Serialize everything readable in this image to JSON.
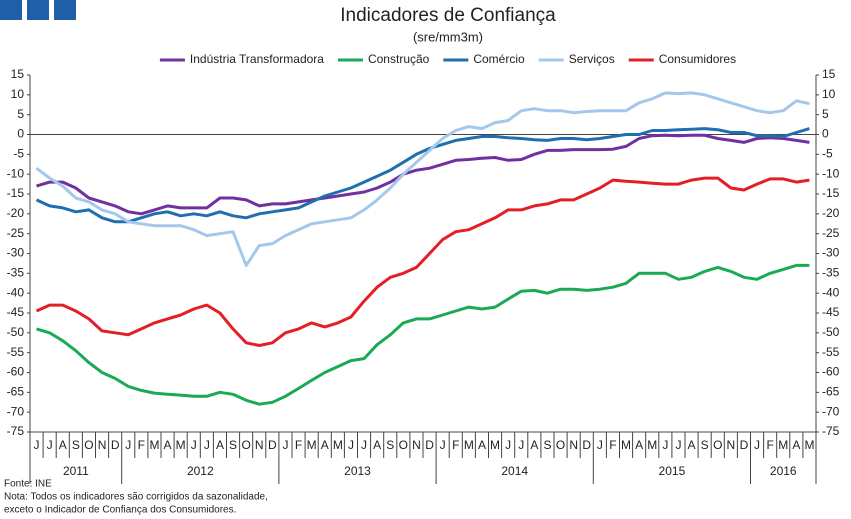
{
  "chart_data": {
    "type": "line",
    "title": "Indicadores de Confiança",
    "subtitle": "(sre/mm3m)",
    "categories": [
      "J",
      "J",
      "A",
      "S",
      "O",
      "N",
      "D",
      "J",
      "F",
      "M",
      "A",
      "M",
      "J",
      "J",
      "A",
      "S",
      "O",
      "N",
      "D",
      "J",
      "F",
      "M",
      "A",
      "M",
      "J",
      "J",
      "A",
      "S",
      "O",
      "N",
      "D",
      "J",
      "F",
      "M",
      "A",
      "M",
      "J",
      "J",
      "A",
      "S",
      "O",
      "N",
      "D",
      "J",
      "F",
      "M",
      "A",
      "M",
      "J",
      "J",
      "A",
      "S",
      "O",
      "N",
      "D",
      "J",
      "F",
      "M",
      "A",
      "M"
    ],
    "years": [
      "2011",
      "2012",
      "2013",
      "2014",
      "2015",
      "2016"
    ],
    "series": [
      {
        "name": "Indústria Transformadora",
        "color": "#7030a0",
        "values": [
          -13,
          -12,
          -12,
          -13.5,
          -16,
          -17,
          -18,
          -19.5,
          -20,
          -19,
          -18,
          -18.5,
          -18.5,
          -18.5,
          -16,
          -16,
          -16.5,
          -18,
          -17.5,
          -17.5,
          -17,
          -16.5,
          -16,
          -15.5,
          -15,
          -14.5,
          -13.5,
          -12,
          -10,
          -9,
          -8.5,
          -7.5,
          -6.5,
          -6.3,
          -6,
          -5.8,
          -6.5,
          -6.3,
          -5,
          -4,
          -4,
          -3.8,
          -3.8,
          -3.8,
          -3.7,
          -3,
          -1,
          -0.3,
          -0.2,
          -0.3,
          -0.2,
          -0.2,
          -1,
          -1.5,
          -2,
          -1,
          -0.8,
          -1,
          -1.5,
          -2
        ]
      },
      {
        "name": "Construção",
        "color": "#1aaa55",
        "values": [
          -49,
          -50,
          -52,
          -54.5,
          -57.5,
          -60,
          -61.5,
          -63.5,
          -64.5,
          -65.2,
          -65.5,
          -65.7,
          -66,
          -66,
          -65,
          -65.5,
          -67,
          -68,
          -67.5,
          -66,
          -64,
          -62,
          -60,
          -58.5,
          -57,
          -56.5,
          -53,
          -50.5,
          -47.5,
          -46.5,
          -46.5,
          -45.5,
          -44.5,
          -43.5,
          -44,
          -43.5,
          -41.5,
          -39.5,
          -39.3,
          -40,
          -39,
          -39,
          -39.3,
          -39,
          -38.5,
          -37.5,
          -35,
          -35,
          -35,
          -36.5,
          -36,
          -34.5,
          -33.5,
          -34.5,
          -36,
          -36.5,
          -35,
          -34,
          -33,
          -33
        ]
      },
      {
        "name": "Comércio",
        "color": "#1f6eb0",
        "values": [
          -16.5,
          -18,
          -18.5,
          -19.5,
          -19,
          -21,
          -22,
          -22,
          -21,
          -20,
          -19.5,
          -20.5,
          -20,
          -20.5,
          -19.5,
          -20.5,
          -21,
          -20,
          -19.5,
          -19,
          -18.5,
          -17,
          -15.5,
          -14.5,
          -13.5,
          -12,
          -10.5,
          -9,
          -7,
          -5,
          -3.5,
          -2.5,
          -1.5,
          -1,
          -0.5,
          -0.5,
          -0.8,
          -1,
          -1.3,
          -1.5,
          -1,
          -1,
          -1.3,
          -1,
          -0.5,
          0,
          0,
          1,
          1,
          1.2,
          1.3,
          1.5,
          1.2,
          0.5,
          0.5,
          -0.3,
          -0.3,
          -0.5,
          0.5,
          1.5
        ]
      },
      {
        "name": "Serviços",
        "color": "#a3c8ec",
        "values": [
          -8.5,
          -11,
          -13,
          -16,
          -17,
          -19,
          -20,
          -22,
          -22.5,
          -23,
          -23,
          -23,
          -24,
          -25.5,
          -25,
          -24.5,
          -33,
          -28,
          -27.5,
          -25.5,
          -24,
          -22.5,
          -22,
          -21.5,
          -21,
          -19,
          -16.5,
          -13.5,
          -10,
          -7,
          -4,
          -1,
          1,
          2,
          1.5,
          3,
          3.5,
          6,
          6.5,
          6,
          6,
          5.5,
          5.8,
          6,
          6,
          6,
          8,
          9,
          10.5,
          10.3,
          10.5,
          10,
          9,
          8,
          7,
          6,
          5.5,
          6,
          8.5,
          7.8
        ]
      },
      {
        "name": "Consumidores",
        "color": "#e31e24",
        "values": [
          -44.5,
          -43,
          -43,
          -44.5,
          -46.5,
          -49.5,
          -50,
          -50.5,
          -49,
          -47.5,
          -46.5,
          -45.5,
          -44,
          -43,
          -45,
          -49,
          -52.5,
          -53.2,
          -52.5,
          -50,
          -49,
          -47.5,
          -48.5,
          -47.5,
          -46,
          -42,
          -38.5,
          -36,
          -35,
          -33.5,
          -30,
          -26.5,
          -24.5,
          -24,
          -22.5,
          -21,
          -19,
          -19,
          -18,
          -17.5,
          -16.5,
          -16.5,
          -15,
          -13.5,
          -11.5,
          -11.8,
          -12,
          -12.3,
          -12.5,
          -12.5,
          -11.5,
          -11,
          -11,
          -13.5,
          -14,
          -12.5,
          -11.2,
          -11.2,
          -12,
          -11.5
        ]
      }
    ],
    "ylim": [
      -75,
      15
    ],
    "yticks": [
      15,
      10,
      5,
      0,
      -5,
      -10,
      -15,
      -20,
      -25,
      -30,
      -35,
      -40,
      -45,
      -50,
      -55,
      -60,
      -65,
      -70,
      -75
    ],
    "notes": [
      "Fonte: INE",
      "Nota: Todos os indicadores são corrigidos da sazonalidade,",
      "exceto o Indicador de Confiança dos Consumidores."
    ]
  }
}
